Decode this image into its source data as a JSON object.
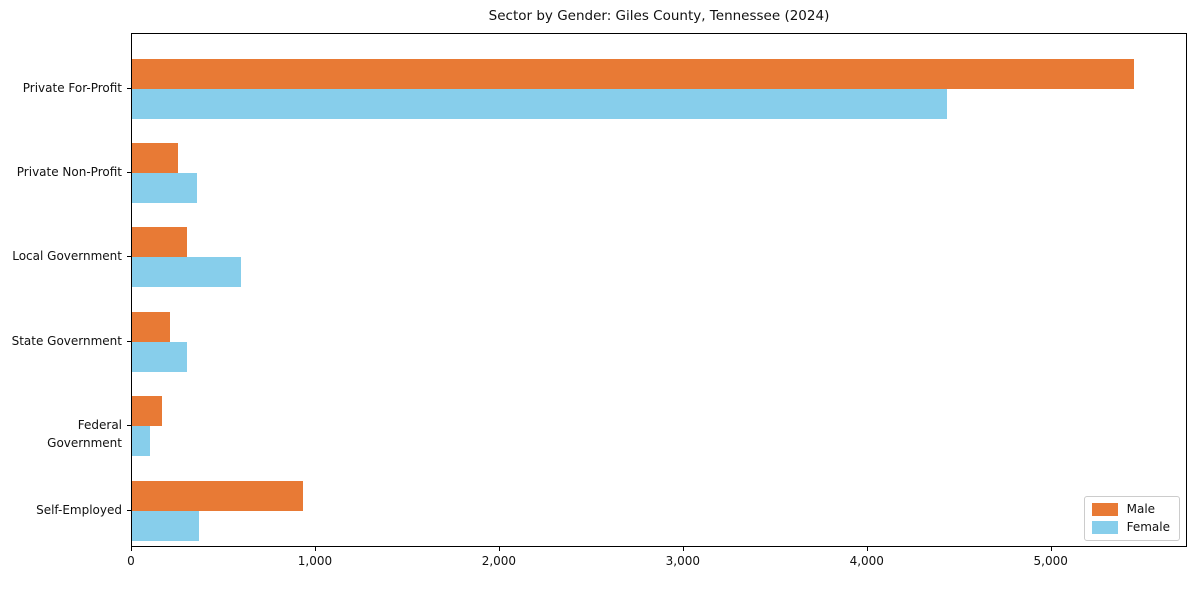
{
  "chart_data": {
    "type": "bar",
    "orientation": "horizontal",
    "title": "Sector by Gender: Giles County, Tennessee (2024)",
    "categories": [
      "Private For-Profit",
      "Private Non-Profit",
      "Local Government",
      "State Government",
      "Federal Government",
      "Self-Employed"
    ],
    "series": [
      {
        "name": "Male",
        "color": "#e87a35",
        "values": [
          5450,
          250,
          300,
          205,
          165,
          930
        ]
      },
      {
        "name": "Female",
        "color": "#87ceeb",
        "values": [
          4430,
          355,
          590,
          300,
          100,
          365
        ]
      }
    ],
    "xlim": [
      0,
      5730
    ],
    "xticks": [
      0,
      1000,
      2000,
      3000,
      4000,
      5000
    ],
    "xtick_labels": [
      "0",
      "1,000",
      "2,000",
      "3,000",
      "4,000",
      "5,000"
    ],
    "legend": {
      "position": "lower-right",
      "labels": [
        "Male",
        "Female"
      ]
    },
    "grid": false,
    "axis_color": "#000000",
    "background_color": "#ffffff"
  }
}
